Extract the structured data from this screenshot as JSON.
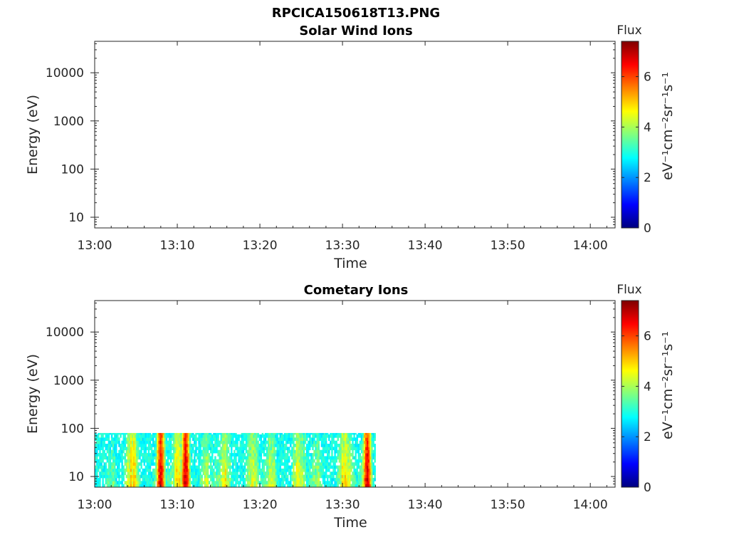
{
  "figure_title": "RPCICA150618T13.PNG",
  "chart_data": [
    {
      "type": "heatmap",
      "title": "Solar Wind Ions",
      "xlabel": "Time",
      "ylabel": "Energy (eV)",
      "y_scale": "log",
      "xlim": [
        "13:00",
        "14:03"
      ],
      "ylim": [
        6,
        45000
      ],
      "x_ticks": [
        "13:00",
        "13:10",
        "13:20",
        "13:30",
        "13:40",
        "13:50",
        "14:00"
      ],
      "y_ticks": [
        "10",
        "100",
        "1000",
        "10000"
      ],
      "colorbar": {
        "title": "Flux",
        "label": "eV⁻¹cm⁻²sr⁻¹s⁻¹",
        "range": [
          0,
          7.4
        ],
        "ticks": [
          "0",
          "2",
          "4",
          "6"
        ],
        "colormap": "jet"
      },
      "data": []
    },
    {
      "type": "heatmap",
      "title": "Cometary Ions",
      "xlabel": "Time",
      "ylabel": "Energy (eV)",
      "y_scale": "log",
      "xlim": [
        "13:00",
        "14:03"
      ],
      "ylim": [
        6,
        45000
      ],
      "x_ticks": [
        "13:00",
        "13:10",
        "13:20",
        "13:30",
        "13:40",
        "13:50",
        "14:00"
      ],
      "y_ticks": [
        "10",
        "100",
        "1000",
        "10000"
      ],
      "colorbar": {
        "title": "Flux",
        "label": "eV⁻¹cm⁻²sr⁻¹s⁻¹",
        "range": [
          0,
          7.4
        ],
        "ticks": [
          "0",
          "2",
          "4",
          "6"
        ],
        "colormap": "jet"
      },
      "data_extent": {
        "time_start": "13:00",
        "time_end": "13:34",
        "energy_min": 6,
        "energy_max": 80
      },
      "hot_spots": [
        {
          "time": "13:08",
          "flux": 6.8
        },
        {
          "time": "13:11",
          "flux": 6.9
        },
        {
          "time": "13:33",
          "flux": 6.8
        }
      ]
    }
  ]
}
